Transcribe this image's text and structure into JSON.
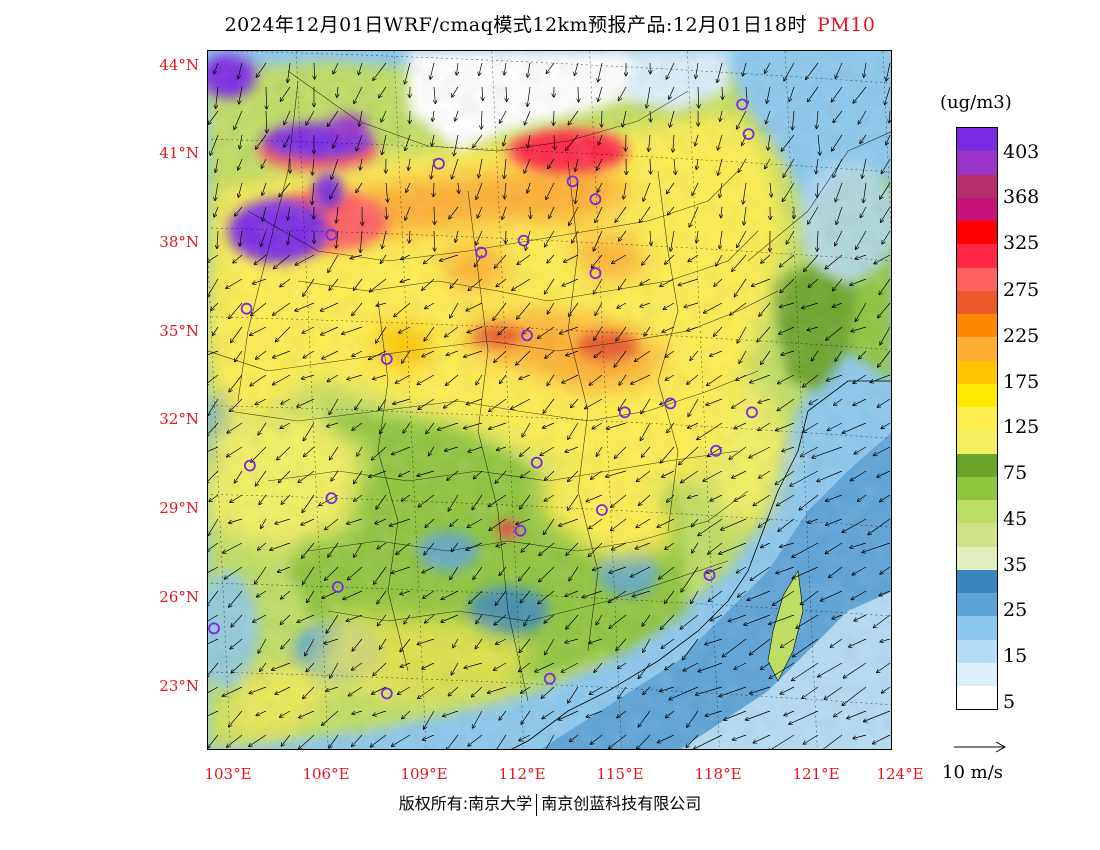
{
  "title": "2024年12月01日WRF/cmaq模式12km预报产品:12月01日18时",
  "pollutant": "PM10",
  "lat_labels": [
    "44°N",
    "41°N",
    "38°N",
    "35°N",
    "32°N",
    "29°N",
    "26°N",
    "23°N"
  ],
  "lon_labels": [
    "103°E",
    "106°E",
    "109°E",
    "112°E",
    "115°E",
    "118°E",
    "121°E",
    "124°E"
  ],
  "legend": {
    "unit": "(ug/m3)",
    "labels": [
      "403",
      "368",
      "325",
      "275",
      "225",
      "175",
      "125",
      "75",
      "45",
      "35",
      "25",
      "15",
      "5"
    ],
    "colors": [
      "#7a2be2",
      "#9a35c8",
      "#b42f6a",
      "#c8127a",
      "#ff0000",
      "#ff2545",
      "#ff6060",
      "#e85a2a",
      "#ff8800",
      "#ffad33",
      "#ffc400",
      "#ffe800",
      "#ffee50",
      "#f2f060",
      "#6aa52a",
      "#8ec63c",
      "#bedd64",
      "#cfe386",
      "#e0eec0",
      "#3a87c0",
      "#5ba4d8",
      "#8cc8ee",
      "#b4dcf6",
      "#dceefa",
      "#ffffff"
    ]
  },
  "wind_reference": {
    "label": "10 m/s"
  },
  "cities": [
    {
      "lon": 119.2,
      "lat": 42.7
    },
    {
      "lon": 119.4,
      "lat": 41.7
    },
    {
      "lon": 114.0,
      "lat": 40.1
    },
    {
      "lon": 114.7,
      "lat": 39.5
    },
    {
      "lon": 109.9,
      "lat": 40.7
    },
    {
      "lon": 106.6,
      "lat": 38.3
    },
    {
      "lon": 111.2,
      "lat": 37.7
    },
    {
      "lon": 112.5,
      "lat": 38.1
    },
    {
      "lon": 114.7,
      "lat": 37.0
    },
    {
      "lon": 104.0,
      "lat": 35.8
    },
    {
      "lon": 112.6,
      "lat": 34.9
    },
    {
      "lon": 108.3,
      "lat": 34.1
    },
    {
      "lon": 117.0,
      "lat": 32.6
    },
    {
      "lon": 119.5,
      "lat": 32.3
    },
    {
      "lon": 115.6,
      "lat": 32.3
    },
    {
      "lon": 118.4,
      "lat": 31.0
    },
    {
      "lon": 112.9,
      "lat": 30.6
    },
    {
      "lon": 104.1,
      "lat": 30.5
    },
    {
      "lon": 106.6,
      "lat": 29.4
    },
    {
      "lon": 114.9,
      "lat": 29.0
    },
    {
      "lon": 112.4,
      "lat": 28.3
    },
    {
      "lon": 118.2,
      "lat": 26.8
    },
    {
      "lon": 106.8,
      "lat": 26.4
    },
    {
      "lon": 103.0,
      "lat": 25.0
    },
    {
      "lon": 108.3,
      "lat": 22.8
    },
    {
      "lon": 113.3,
      "lat": 23.3
    }
  ],
  "copyright": {
    "part1": "版权所有:南京大学",
    "part2": "南京创蓝科技有限公司"
  }
}
